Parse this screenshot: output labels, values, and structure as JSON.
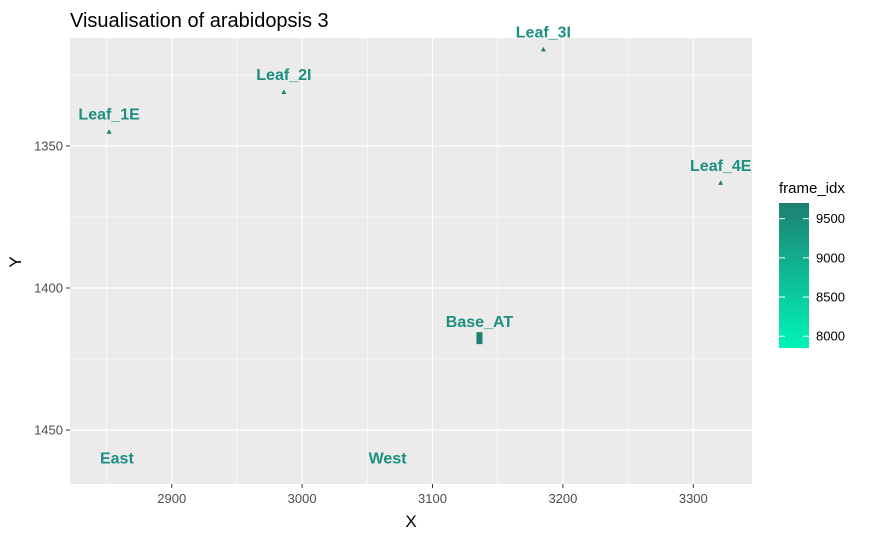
{
  "chart_data": {
    "type": "scatter",
    "title": "Visualisation of arabidopsis  3",
    "xlabel": "X",
    "ylabel": "Y",
    "xlim": [
      2822,
      3345
    ],
    "ylim": [
      1312,
      1469
    ],
    "y_reversed": true,
    "x_ticks": [
      2900,
      3000,
      3100,
      3200,
      3300
    ],
    "y_ticks": [
      1350,
      1400,
      1450
    ],
    "grid": true,
    "panel_background": "#ebebeb",
    "grid_color": "#ffffff",
    "label_color": "#1d8f80",
    "points": [
      {
        "label": "Leaf_1E",
        "x": 2852,
        "y": 1345,
        "frame_idx": 9700
      },
      {
        "label": "Leaf_2I",
        "x": 2986,
        "y": 1331,
        "frame_idx": 9700
      },
      {
        "label": "Leaf_3I",
        "x": 3185,
        "y": 1316,
        "frame_idx": 9700
      },
      {
        "label": "Leaf_4E",
        "x": 3321,
        "y": 1363,
        "frame_idx": 9700
      },
      {
        "label": "Base_AT",
        "x": 3136,
        "y": 1418,
        "frame_idx": 9700
      }
    ],
    "annotations": [
      {
        "label": "East",
        "x": 2845,
        "y": 1460
      },
      {
        "label": "West",
        "x": 3051,
        "y": 1460
      }
    ],
    "legend": {
      "title": "frame_idx",
      "type": "colorbar",
      "position": "right",
      "ticks": [
        9500,
        9000,
        8500,
        8000
      ],
      "range": [
        7850,
        9700
      ],
      "color_low": "#00f5b8",
      "color_high": "#1d8070"
    }
  }
}
